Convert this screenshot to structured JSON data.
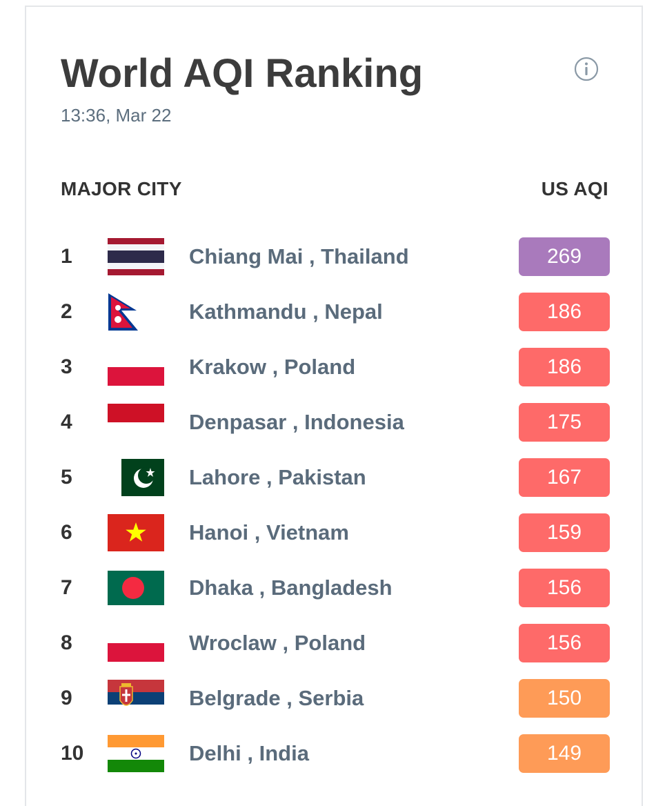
{
  "header": {
    "title": "World AQI Ranking",
    "timestamp": "13:36, Mar 22",
    "info_icon": "info-circle-icon"
  },
  "columns": {
    "city": "MAJOR CITY",
    "aqi": "US AQI"
  },
  "colors": {
    "very_unhealthy": "#a97abc",
    "unhealthy": "#fe6a69",
    "unhealthy_sensitive": "#fe9b57"
  },
  "rankings": [
    {
      "rank": "1",
      "city": "Chiang Mai , Thailand",
      "aqi": "269",
      "flag": "thailand-flag",
      "color": "#a97abc"
    },
    {
      "rank": "2",
      "city": "Kathmandu , Nepal",
      "aqi": "186",
      "flag": "nepal-flag",
      "color": "#fe6a69"
    },
    {
      "rank": "3",
      "city": "Krakow , Poland",
      "aqi": "186",
      "flag": "poland-flag",
      "color": "#fe6a69"
    },
    {
      "rank": "4",
      "city": "Denpasar , Indonesia",
      "aqi": "175",
      "flag": "indonesia-flag",
      "color": "#fe6a69"
    },
    {
      "rank": "5",
      "city": "Lahore , Pakistan",
      "aqi": "167",
      "flag": "pakistan-flag",
      "color": "#fe6a69"
    },
    {
      "rank": "6",
      "city": "Hanoi , Vietnam",
      "aqi": "159",
      "flag": "vietnam-flag",
      "color": "#fe6a69"
    },
    {
      "rank": "7",
      "city": "Dhaka , Bangladesh",
      "aqi": "156",
      "flag": "bangladesh-flag",
      "color": "#fe6a69"
    },
    {
      "rank": "8",
      "city": "Wroclaw , Poland",
      "aqi": "156",
      "flag": "poland-flag",
      "color": "#fe6a69"
    },
    {
      "rank": "9",
      "city": "Belgrade , Serbia",
      "aqi": "150",
      "flag": "serbia-flag",
      "color": "#fe9b57"
    },
    {
      "rank": "10",
      "city": "Delhi , India",
      "aqi": "149",
      "flag": "india-flag",
      "color": "#fe9b57"
    }
  ]
}
